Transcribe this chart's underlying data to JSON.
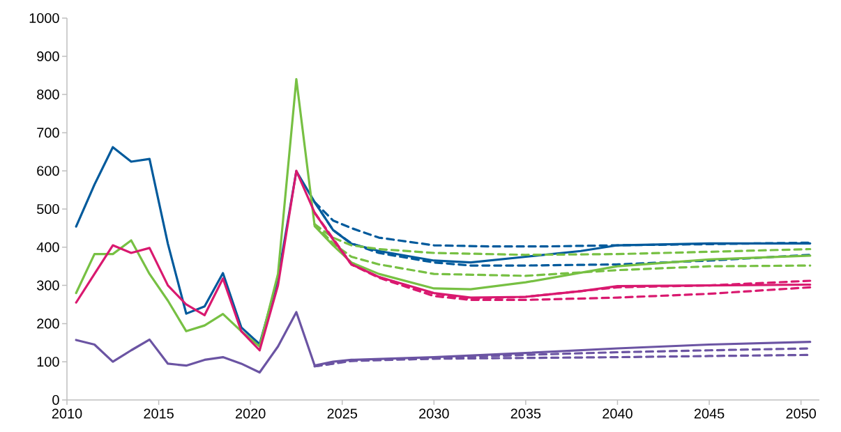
{
  "chart_data": {
    "type": "line",
    "xlim": [
      2010,
      2051
    ],
    "ylim": [
      0,
      1000
    ],
    "xticks": [
      2010,
      2015,
      2020,
      2025,
      2030,
      2035,
      2040,
      2045,
      2050
    ],
    "yticks": [
      0,
      100,
      200,
      300,
      400,
      500,
      600,
      700,
      800,
      900,
      1000
    ],
    "series": [
      {
        "color": "#005a9c",
        "line_style": "solid",
        "x": [
          2010.5,
          2011.5,
          2012.5,
          2013.5,
          2014.5,
          2015.5,
          2016.5,
          2017.5,
          2018.5,
          2019.5,
          2020.5,
          2021.5,
          2022.5,
          2023.5,
          2024.5,
          2025.5,
          2027,
          2030,
          2032,
          2035,
          2038,
          2040,
          2045,
          2050.5
        ],
        "values": [
          454,
          564,
          662,
          624,
          631,
          409,
          226,
          245,
          332,
          190,
          146,
          318,
          599,
          518,
          445,
          409,
          390,
          365,
          360,
          375,
          390,
          405,
          410,
          410
        ]
      },
      {
        "color": "#005a9c",
        "line_style": "dashed",
        "x": [
          2023.5,
          2024.5,
          2025.5,
          2027,
          2030,
          2033,
          2036,
          2040,
          2045,
          2050.5
        ],
        "values": [
          518,
          470,
          450,
          425,
          405,
          402,
          402,
          405,
          408,
          412
        ]
      },
      {
        "color": "#005a9c",
        "line_style": "dashed",
        "x": [
          2023.5,
          2024.5,
          2025.5,
          2027,
          2030,
          2032,
          2035,
          2040,
          2045,
          2050.5
        ],
        "values": [
          518,
          445,
          410,
          385,
          360,
          352,
          352,
          355,
          365,
          380
        ]
      },
      {
        "color": "#77c043",
        "line_style": "solid",
        "x": [
          2010.5,
          2011.5,
          2012.5,
          2013.5,
          2014.5,
          2015.5,
          2016.5,
          2017.5,
          2018.5,
          2019.5,
          2020.5,
          2021.5,
          2022.5,
          2023.5,
          2024.5,
          2025.5,
          2027,
          2030,
          2032,
          2035,
          2040,
          2045,
          2050.5
        ],
        "values": [
          280,
          382,
          382,
          418,
          330,
          260,
          180,
          195,
          225,
          180,
          140,
          330,
          840,
          455,
          405,
          360,
          330,
          292,
          290,
          308,
          350,
          368,
          378
        ]
      },
      {
        "color": "#77c043",
        "line_style": "dashed",
        "x": [
          2023.5,
          2024.5,
          2025.5,
          2027,
          2030,
          2035,
          2040,
          2045,
          2050.5
        ],
        "values": [
          460,
          425,
          405,
          395,
          385,
          380,
          382,
          388,
          395
        ]
      },
      {
        "color": "#77c043",
        "line_style": "dashed",
        "x": [
          2023.5,
          2024.5,
          2025.5,
          2027,
          2030,
          2035,
          2040,
          2045,
          2050.5
        ],
        "values": [
          460,
          410,
          375,
          355,
          330,
          325,
          340,
          350,
          352
        ]
      },
      {
        "color": "#d9196f",
        "line_style": "solid",
        "x": [
          2010.5,
          2011.5,
          2012.5,
          2013.5,
          2014.5,
          2015.5,
          2016.5,
          2017.5,
          2018.5,
          2019.5,
          2020.5,
          2021.5,
          2022.5,
          2023.5,
          2024.5,
          2025.5,
          2027,
          2030,
          2032,
          2035,
          2038,
          2040,
          2045,
          2050.5
        ],
        "values": [
          255,
          330,
          405,
          385,
          398,
          300,
          250,
          222,
          318,
          180,
          130,
          300,
          600,
          490,
          420,
          355,
          322,
          280,
          268,
          270,
          285,
          298,
          300,
          302
        ]
      },
      {
        "color": "#d9196f",
        "line_style": "dashed",
        "x": [
          2023.5,
          2025.5,
          2027,
          2030,
          2032,
          2035,
          2040,
          2045,
          2050.5
        ],
        "values": [
          490,
          355,
          320,
          272,
          262,
          262,
          268,
          278,
          295
        ]
      },
      {
        "color": "#d9196f",
        "line_style": "dashed",
        "x": [
          2023.5,
          2025.5,
          2027,
          2030,
          2032,
          2035,
          2040,
          2045,
          2050.5
        ],
        "values": [
          490,
          355,
          322,
          278,
          265,
          270,
          295,
          300,
          312
        ]
      },
      {
        "color": "#6b54a3",
        "line_style": "solid",
        "x": [
          2010.5,
          2011.5,
          2012.5,
          2013.5,
          2014.5,
          2015.5,
          2016.5,
          2017.5,
          2018.5,
          2019.5,
          2020.5,
          2021.5,
          2022.5,
          2023.5,
          2024.5,
          2025.5,
          2030,
          2035,
          2040,
          2045,
          2050.5
        ],
        "values": [
          157,
          145,
          100,
          130,
          158,
          95,
          90,
          105,
          112,
          95,
          72,
          140,
          230,
          90,
          100,
          105,
          112,
          123,
          135,
          145,
          152
        ]
      },
      {
        "color": "#6b54a3",
        "line_style": "dashed",
        "x": [
          2023.5,
          2025.5,
          2030,
          2035,
          2040,
          2045,
          2050.5
        ],
        "values": [
          88,
          103,
          110,
          118,
          125,
          130,
          135
        ]
      },
      {
        "color": "#6b54a3",
        "line_style": "dashed",
        "x": [
          2023.5,
          2025.5,
          2030,
          2035,
          2040,
          2045,
          2050.5
        ],
        "values": [
          88,
          102,
          108,
          110,
          112,
          115,
          118
        ]
      }
    ]
  }
}
